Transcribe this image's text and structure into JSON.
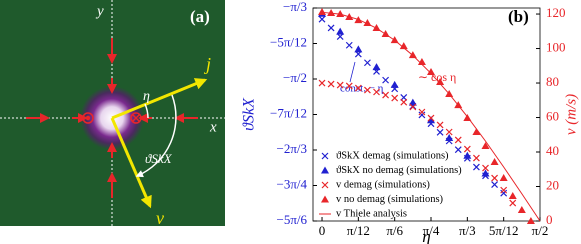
{
  "panel_a": {
    "tag": "(a)",
    "x_label": "x",
    "y_label": "y",
    "j_label": "j",
    "v_label": "v",
    "eta_label": "η",
    "theta_label": "ϑSkX"
  },
  "chart_data": {
    "type": "scatter",
    "tag": "(b)",
    "xlabel": "η",
    "ylabel": "ϑSkX",
    "y2label": "v (m/s)",
    "xlim": [
      -0.065,
      1.5708
    ],
    "xticks": [
      0,
      {
        "value": 0.2618,
        "label": "π/12"
      },
      {
        "value": 0.5236,
        "label": "π/6"
      },
      {
        "value": 0.7854,
        "label": "π/4"
      },
      {
        "value": 1.0472,
        "label": "π/3"
      },
      {
        "value": 1.309,
        "label": "5π/12"
      },
      {
        "value": 1.5708,
        "label": "π/2"
      }
    ],
    "ylim": [
      -2.618,
      -1.0472
    ],
    "yticks": [
      {
        "value": -1.0472,
        "label": "−π/3"
      },
      {
        "value": -1.309,
        "label": "−5π/12"
      },
      {
        "value": -1.5708,
        "label": "−π/2"
      },
      {
        "value": -1.8326,
        "label": "−7π/12"
      },
      {
        "value": -2.0944,
        "label": "−2π/3"
      },
      {
        "value": -2.3562,
        "label": "−3π/4"
      },
      {
        "value": -2.618,
        "label": "−5π/6"
      }
    ],
    "y2lim": [
      0,
      123.5
    ],
    "y2ticks": [
      0,
      20,
      40,
      60,
      80,
      100,
      120
    ],
    "legend": "lower left",
    "annotations": [
      {
        "text": "∼ cos η",
        "color": "#e8262a"
      },
      {
        "text": "const. − η",
        "color": "#2020d0"
      }
    ],
    "series": [
      {
        "name": "ϑSkX demag (simulations)",
        "marker": "x",
        "axis": "y",
        "color": "#2020d0",
        "x": [
          0,
          0.0654,
          0.1309,
          0.1963,
          0.2618,
          0.3272,
          0.3927,
          0.4581,
          0.5236,
          0.589,
          0.6545,
          0.7199,
          0.7854,
          0.8508,
          0.9163,
          0.9817,
          1.0472,
          1.1126,
          1.1781,
          1.2435,
          1.309
        ],
        "values": [
          -1.13,
          -1.194,
          -1.258,
          -1.322,
          -1.387,
          -1.451,
          -1.515,
          -1.579,
          -1.643,
          -1.707,
          -1.771,
          -1.836,
          -1.9,
          -1.964,
          -2.028,
          -2.092,
          -2.156,
          -2.22,
          -2.285,
          -2.349,
          -2.413
        ]
      },
      {
        "name": "ϑSkX no demag (simulations)",
        "marker": "triangle",
        "axis": "y",
        "color": "#2020d0",
        "x": [
          0,
          0.1309,
          0.2618,
          0.3927,
          0.5236,
          0.6545,
          0.7854,
          0.9163,
          1.0472,
          1.1781
        ],
        "values": [
          -1.09,
          -1.221,
          -1.352,
          -1.483,
          -1.614,
          -1.745,
          -1.875,
          -2.006,
          -2.137,
          -2.268
        ]
      },
      {
        "name": "v  demag (simulations)",
        "marker": "x",
        "axis": "y2",
        "color": "#e8262a",
        "x": [
          0,
          0.0654,
          0.1309,
          0.1963,
          0.2618,
          0.3272,
          0.3927,
          0.4581,
          0.5236,
          0.589,
          0.6545,
          0.7199,
          0.7854,
          0.8508,
          0.9163,
          0.9817,
          1.0472,
          1.1126,
          1.1781,
          1.2435,
          1.309,
          1.3744
        ],
        "values": [
          80.0,
          79.4,
          78.8,
          78.3,
          77.1,
          75.9,
          74.8,
          73.0,
          71.3,
          68.9,
          66.1,
          63.2,
          59.7,
          55.7,
          51.6,
          47.0,
          41.7,
          36.5,
          30.7,
          24.9,
          17.9,
          10.4
        ]
      },
      {
        "name": "v  no demag (simulations)",
        "marker": "triangle",
        "axis": "y2",
        "color": "#e8262a",
        "x": [
          0,
          0.0654,
          0.1309,
          0.1963,
          0.2618,
          0.3272,
          0.3927,
          0.4581,
          0.5236,
          0.589,
          0.6545,
          0.7199,
          0.7854,
          0.8508,
          0.9163,
          0.9817,
          1.0472,
          1.1126,
          1.1781,
          1.2435,
          1.309,
          1.3744,
          1.4399,
          1.5053
        ],
        "values": [
          121.2,
          120.6,
          120.0,
          118.3,
          116.5,
          114.8,
          111.9,
          108.4,
          104.9,
          101.4,
          96.2,
          92.2,
          86.4,
          80.6,
          73.6,
          67.2,
          59.7,
          51.6,
          43.5,
          34.2,
          24.9,
          14.5,
          6.4,
          0
        ]
      },
      {
        "name": "v  Thiele analysis",
        "marker": "line",
        "axis": "y2",
        "color": "#e8262a",
        "x": [
          0,
          0.1309,
          0.2618,
          0.3927,
          0.5236,
          0.6545,
          0.7854,
          0.9163,
          1.0472,
          1.1781,
          1.309,
          1.4399,
          1.5708
        ],
        "values": [
          121,
          119.96,
          116.87,
          111.79,
          104.79,
          96.0,
          85.56,
          73.66,
          60.5,
          46.31,
          31.31,
          15.79,
          0
        ]
      }
    ]
  }
}
